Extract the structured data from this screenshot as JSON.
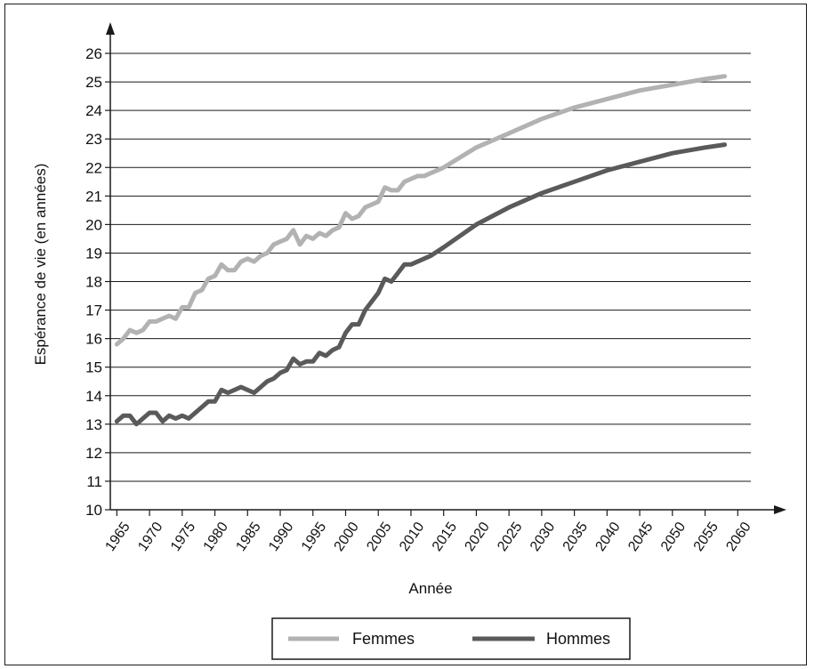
{
  "chart_data": {
    "type": "line",
    "xlabel": "Année",
    "ylabel": "Espérance de vie (en années)",
    "xlim": [
      1964,
      2062
    ],
    "ylim": [
      10,
      26
    ],
    "grid": "horizontal",
    "legend_position": "bottom",
    "x_ticks": [
      1965,
      1970,
      1975,
      1980,
      1985,
      1990,
      1995,
      2000,
      2005,
      2010,
      2015,
      2020,
      2025,
      2030,
      2035,
      2040,
      2045,
      2050,
      2055,
      2060
    ],
    "y_ticks": [
      10,
      11,
      12,
      13,
      14,
      15,
      16,
      17,
      18,
      19,
      20,
      21,
      22,
      23,
      24,
      25,
      26
    ],
    "series": [
      {
        "name": "Femmes",
        "color": "#b2b2b2",
        "x": [
          1965,
          1966,
          1967,
          1968,
          1969,
          1970,
          1971,
          1972,
          1973,
          1974,
          1975,
          1976,
          1977,
          1978,
          1979,
          1980,
          1981,
          1982,
          1983,
          1984,
          1985,
          1986,
          1987,
          1988,
          1989,
          1990,
          1991,
          1992,
          1993,
          1994,
          1995,
          1996,
          1997,
          1998,
          1999,
          2000,
          2001,
          2002,
          2003,
          2004,
          2005,
          2006,
          2007,
          2008,
          2009,
          2010,
          2011,
          2012,
          2013,
          2015,
          2020,
          2025,
          2030,
          2035,
          2040,
          2045,
          2050,
          2055,
          2058
        ],
        "values": [
          15.8,
          16.0,
          16.3,
          16.2,
          16.3,
          16.6,
          16.6,
          16.7,
          16.8,
          16.7,
          17.1,
          17.1,
          17.6,
          17.7,
          18.1,
          18.2,
          18.6,
          18.4,
          18.4,
          18.7,
          18.8,
          18.7,
          18.9,
          19.0,
          19.3,
          19.4,
          19.5,
          19.8,
          19.3,
          19.6,
          19.5,
          19.7,
          19.6,
          19.8,
          19.9,
          20.4,
          20.2,
          20.3,
          20.6,
          20.7,
          20.8,
          21.3,
          21.2,
          21.2,
          21.5,
          21.6,
          21.7,
          21.7,
          21.8,
          22.0,
          22.7,
          23.2,
          23.7,
          24.1,
          24.4,
          24.7,
          24.9,
          25.1,
          25.2
        ]
      },
      {
        "name": "Hommes",
        "color": "#5a5a5a",
        "x": [
          1965,
          1966,
          1967,
          1968,
          1969,
          1970,
          1971,
          1972,
          1973,
          1974,
          1975,
          1976,
          1977,
          1978,
          1979,
          1980,
          1981,
          1982,
          1983,
          1984,
          1985,
          1986,
          1987,
          1988,
          1989,
          1990,
          1991,
          1992,
          1993,
          1994,
          1995,
          1996,
          1997,
          1998,
          1999,
          2000,
          2001,
          2002,
          2003,
          2004,
          2005,
          2006,
          2007,
          2008,
          2009,
          2010,
          2011,
          2012,
          2013,
          2015,
          2020,
          2025,
          2030,
          2035,
          2040,
          2045,
          2050,
          2055,
          2058
        ],
        "values": [
          13.1,
          13.3,
          13.3,
          13.0,
          13.2,
          13.4,
          13.4,
          13.1,
          13.3,
          13.2,
          13.3,
          13.2,
          13.4,
          13.6,
          13.8,
          13.8,
          14.2,
          14.1,
          14.2,
          14.3,
          14.2,
          14.1,
          14.3,
          14.5,
          14.6,
          14.8,
          14.9,
          15.3,
          15.1,
          15.2,
          15.2,
          15.5,
          15.4,
          15.6,
          15.7,
          16.2,
          16.5,
          16.5,
          17.0,
          17.3,
          17.6,
          18.1,
          18.0,
          18.3,
          18.6,
          18.6,
          18.7,
          18.8,
          18.9,
          19.2,
          20.0,
          20.6,
          21.1,
          21.5,
          21.9,
          22.2,
          22.5,
          22.7,
          22.8
        ]
      }
    ]
  }
}
